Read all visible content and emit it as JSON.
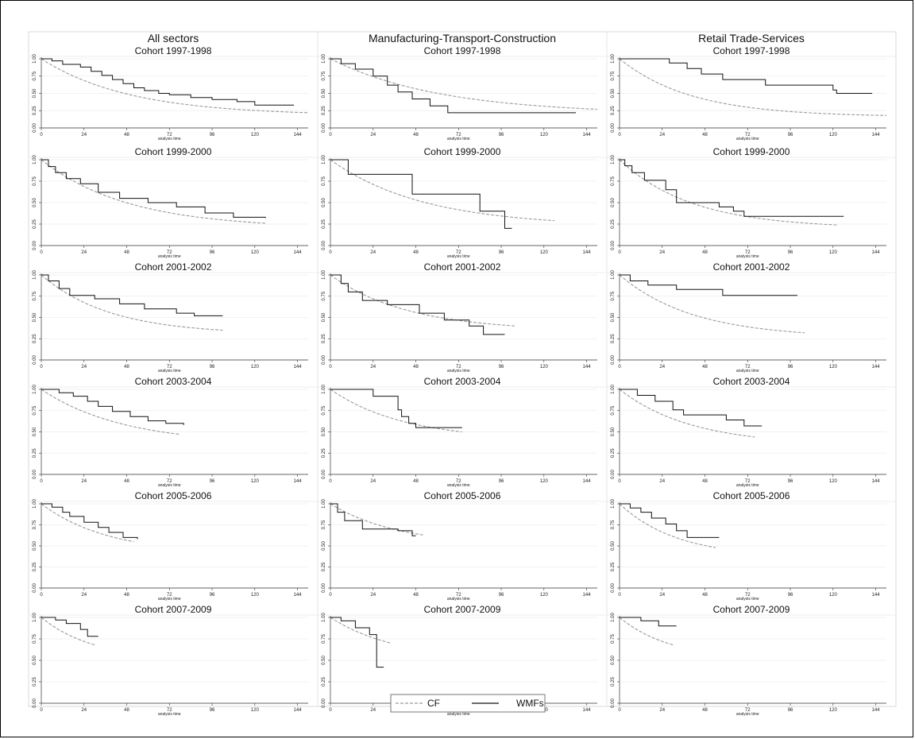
{
  "chart_data": {
    "type": "line",
    "column_titles": [
      "All sectors",
      "Manufacturing-Transport-Construction",
      "Retail Trade-Services"
    ],
    "row_titles": [
      "Cohort 1997-1998",
      "Cohort 1999-2000",
      "Cohort 2001-2002",
      "Cohort 2003-2004",
      "Cohort 2005-2006",
      "Cohort 2007-2009"
    ],
    "xlabel": "analysis time",
    "ylabel": "",
    "xticks": [
      0,
      24,
      48,
      72,
      96,
      120,
      144
    ],
    "yticks": [
      "0.00",
      "0.25",
      "0.50",
      "0.75",
      "1.00"
    ],
    "xlim": [
      0,
      150
    ],
    "ylim": [
      0,
      1
    ],
    "grid": true,
    "legend": {
      "position": "bottom-center",
      "entries": [
        {
          "name": "CF",
          "style": "dashed",
          "color": "#999999"
        },
        {
          "name": "WMFs",
          "style": "solid",
          "color": "#111111"
        }
      ]
    },
    "panels": [
      {
        "row": 0,
        "col": 0,
        "cf_end": [
          150,
          0.22
        ],
        "cf_rate": 0.022,
        "cf_floor": 0.18,
        "wmf": [
          [
            0,
            1
          ],
          [
            6,
            0.97
          ],
          [
            12,
            0.92
          ],
          [
            22,
            0.88
          ],
          [
            28,
            0.82
          ],
          [
            34,
            0.76
          ],
          [
            40,
            0.7
          ],
          [
            46,
            0.64
          ],
          [
            52,
            0.58
          ],
          [
            58,
            0.54
          ],
          [
            66,
            0.5
          ],
          [
            72,
            0.48
          ],
          [
            84,
            0.44
          ],
          [
            96,
            0.41
          ],
          [
            110,
            0.38
          ],
          [
            120,
            0.33
          ],
          [
            142,
            0.33
          ]
        ]
      },
      {
        "row": 0,
        "col": 1,
        "cf_end": [
          150,
          0.27
        ],
        "cf_rate": 0.02,
        "cf_floor": 0.2,
        "wmf": [
          [
            0,
            1
          ],
          [
            6,
            0.93
          ],
          [
            14,
            0.85
          ],
          [
            24,
            0.75
          ],
          [
            32,
            0.62
          ],
          [
            38,
            0.52
          ],
          [
            46,
            0.42
          ],
          [
            56,
            0.32
          ],
          [
            66,
            0.22
          ],
          [
            138,
            0.22
          ]
        ]
      },
      {
        "row": 0,
        "col": 2,
        "cf_end": [
          150,
          0.18
        ],
        "cf_rate": 0.03,
        "cf_floor": 0.16,
        "wmf": [
          [
            0,
            1
          ],
          [
            28,
            0.94
          ],
          [
            38,
            0.86
          ],
          [
            46,
            0.78
          ],
          [
            58,
            0.7
          ],
          [
            82,
            0.62
          ],
          [
            120,
            0.55
          ],
          [
            122,
            0.5
          ],
          [
            142,
            0.5
          ]
        ]
      },
      {
        "row": 1,
        "col": 0,
        "cf_end": [
          126,
          0.26
        ],
        "cf_rate": 0.022,
        "cf_floor": 0.2,
        "wmf": [
          [
            0,
            1
          ],
          [
            4,
            0.92
          ],
          [
            8,
            0.85
          ],
          [
            14,
            0.78
          ],
          [
            22,
            0.72
          ],
          [
            32,
            0.62
          ],
          [
            44,
            0.55
          ],
          [
            60,
            0.5
          ],
          [
            76,
            0.45
          ],
          [
            92,
            0.38
          ],
          [
            108,
            0.33
          ],
          [
            126,
            0.32
          ]
        ]
      },
      {
        "row": 1,
        "col": 1,
        "cf_end": [
          126,
          0.29
        ],
        "cf_rate": 0.02,
        "cf_floor": 0.22,
        "wmf": [
          [
            0,
            1
          ],
          [
            10,
            0.83
          ],
          [
            46,
            0.6
          ],
          [
            84,
            0.4
          ],
          [
            98,
            0.2
          ],
          [
            102,
            0.2
          ]
        ]
      },
      {
        "row": 1,
        "col": 2,
        "cf_end": [
          122,
          0.24
        ],
        "cf_rate": 0.025,
        "cf_floor": 0.2,
        "wmf": [
          [
            0,
            1
          ],
          [
            3,
            0.93
          ],
          [
            7,
            0.85
          ],
          [
            14,
            0.76
          ],
          [
            26,
            0.65
          ],
          [
            32,
            0.5
          ],
          [
            56,
            0.45
          ],
          [
            64,
            0.4
          ],
          [
            70,
            0.34
          ],
          [
            126,
            0.34
          ]
        ]
      },
      {
        "row": 2,
        "col": 0,
        "cf_end": [
          102,
          0.35
        ],
        "cf_rate": 0.025,
        "cf_floor": 0.3,
        "wmf": [
          [
            0,
            1
          ],
          [
            4,
            0.93
          ],
          [
            10,
            0.84
          ],
          [
            16,
            0.76
          ],
          [
            30,
            0.72
          ],
          [
            44,
            0.66
          ],
          [
            58,
            0.6
          ],
          [
            76,
            0.55
          ],
          [
            86,
            0.52
          ],
          [
            102,
            0.52
          ]
        ]
      },
      {
        "row": 2,
        "col": 1,
        "cf_end": [
          104,
          0.4
        ],
        "cf_rate": 0.02,
        "cf_floor": 0.34,
        "wmf": [
          [
            0,
            1
          ],
          [
            6,
            0.9
          ],
          [
            10,
            0.8
          ],
          [
            18,
            0.7
          ],
          [
            32,
            0.65
          ],
          [
            50,
            0.55
          ],
          [
            64,
            0.47
          ],
          [
            78,
            0.4
          ],
          [
            86,
            0.3
          ],
          [
            98,
            0.3
          ]
        ]
      },
      {
        "row": 2,
        "col": 2,
        "cf_end": [
          104,
          0.32
        ],
        "cf_rate": 0.025,
        "cf_floor": 0.26,
        "wmf": [
          [
            0,
            1
          ],
          [
            6,
            0.93
          ],
          [
            16,
            0.88
          ],
          [
            32,
            0.83
          ],
          [
            58,
            0.76
          ],
          [
            100,
            0.76
          ]
        ]
      },
      {
        "row": 3,
        "col": 0,
        "cf_end": [
          78,
          0.47
        ],
        "cf_rate": 0.022,
        "cf_floor": 0.35,
        "wmf": [
          [
            0,
            1
          ],
          [
            10,
            0.96
          ],
          [
            18,
            0.92
          ],
          [
            26,
            0.86
          ],
          [
            32,
            0.8
          ],
          [
            40,
            0.74
          ],
          [
            50,
            0.68
          ],
          [
            60,
            0.63
          ],
          [
            70,
            0.6
          ],
          [
            80,
            0.58
          ]
        ]
      },
      {
        "row": 3,
        "col": 1,
        "cf_end": [
          74,
          0.5
        ],
        "cf_rate": 0.018,
        "cf_floor": 0.4,
        "wmf": [
          [
            0,
            1
          ],
          [
            24,
            0.92
          ],
          [
            38,
            0.76
          ],
          [
            40,
            0.68
          ],
          [
            44,
            0.6
          ],
          [
            48,
            0.55
          ],
          [
            74,
            0.55
          ]
        ]
      },
      {
        "row": 3,
        "col": 2,
        "cf_end": [
          76,
          0.44
        ],
        "cf_rate": 0.024,
        "cf_floor": 0.34,
        "wmf": [
          [
            0,
            1
          ],
          [
            10,
            0.93
          ],
          [
            20,
            0.86
          ],
          [
            30,
            0.76
          ],
          [
            36,
            0.7
          ],
          [
            60,
            0.64
          ],
          [
            70,
            0.57
          ],
          [
            80,
            0.57
          ]
        ]
      },
      {
        "row": 4,
        "col": 0,
        "cf_end": [
          52,
          0.55
        ],
        "cf_rate": 0.02,
        "cf_floor": 0.4,
        "wmf": [
          [
            0,
            1
          ],
          [
            6,
            0.96
          ],
          [
            12,
            0.9
          ],
          [
            16,
            0.85
          ],
          [
            24,
            0.78
          ],
          [
            32,
            0.72
          ],
          [
            38,
            0.66
          ],
          [
            46,
            0.6
          ],
          [
            54,
            0.58
          ]
        ]
      },
      {
        "row": 4,
        "col": 1,
        "cf_end": [
          52,
          0.63
        ],
        "cf_rate": 0.018,
        "cf_floor": 0.5,
        "wmf": [
          [
            0,
            1
          ],
          [
            4,
            0.9
          ],
          [
            8,
            0.8
          ],
          [
            18,
            0.7
          ],
          [
            38,
            0.68
          ],
          [
            46,
            0.62
          ],
          [
            48,
            0.62
          ]
        ]
      },
      {
        "row": 4,
        "col": 2,
        "cf_end": [
          54,
          0.48
        ],
        "cf_rate": 0.024,
        "cf_floor": 0.36,
        "wmf": [
          [
            0,
            1
          ],
          [
            6,
            0.95
          ],
          [
            12,
            0.9
          ],
          [
            18,
            0.83
          ],
          [
            26,
            0.76
          ],
          [
            32,
            0.68
          ],
          [
            38,
            0.6
          ],
          [
            56,
            0.6
          ]
        ]
      },
      {
        "row": 5,
        "col": 0,
        "cf_end": [
          30,
          0.68
        ],
        "cf_rate": 0.025,
        "cf_floor": 0.5,
        "wmf": [
          [
            0,
            1
          ],
          [
            8,
            0.97
          ],
          [
            14,
            0.93
          ],
          [
            22,
            0.86
          ],
          [
            26,
            0.78
          ],
          [
            32,
            0.78
          ]
        ]
      },
      {
        "row": 5,
        "col": 1,
        "cf_end": [
          34,
          0.7
        ],
        "cf_rate": 0.02,
        "cf_floor": 0.5,
        "wmf": [
          [
            0,
            1
          ],
          [
            6,
            0.96
          ],
          [
            14,
            0.88
          ],
          [
            22,
            0.8
          ],
          [
            26,
            0.42
          ],
          [
            30,
            0.42
          ]
        ]
      },
      {
        "row": 5,
        "col": 2,
        "cf_end": [
          30,
          0.68
        ],
        "cf_rate": 0.025,
        "cf_floor": 0.5,
        "wmf": [
          [
            0,
            1
          ],
          [
            12,
            0.96
          ],
          [
            22,
            0.9
          ],
          [
            32,
            0.9
          ]
        ]
      }
    ]
  }
}
